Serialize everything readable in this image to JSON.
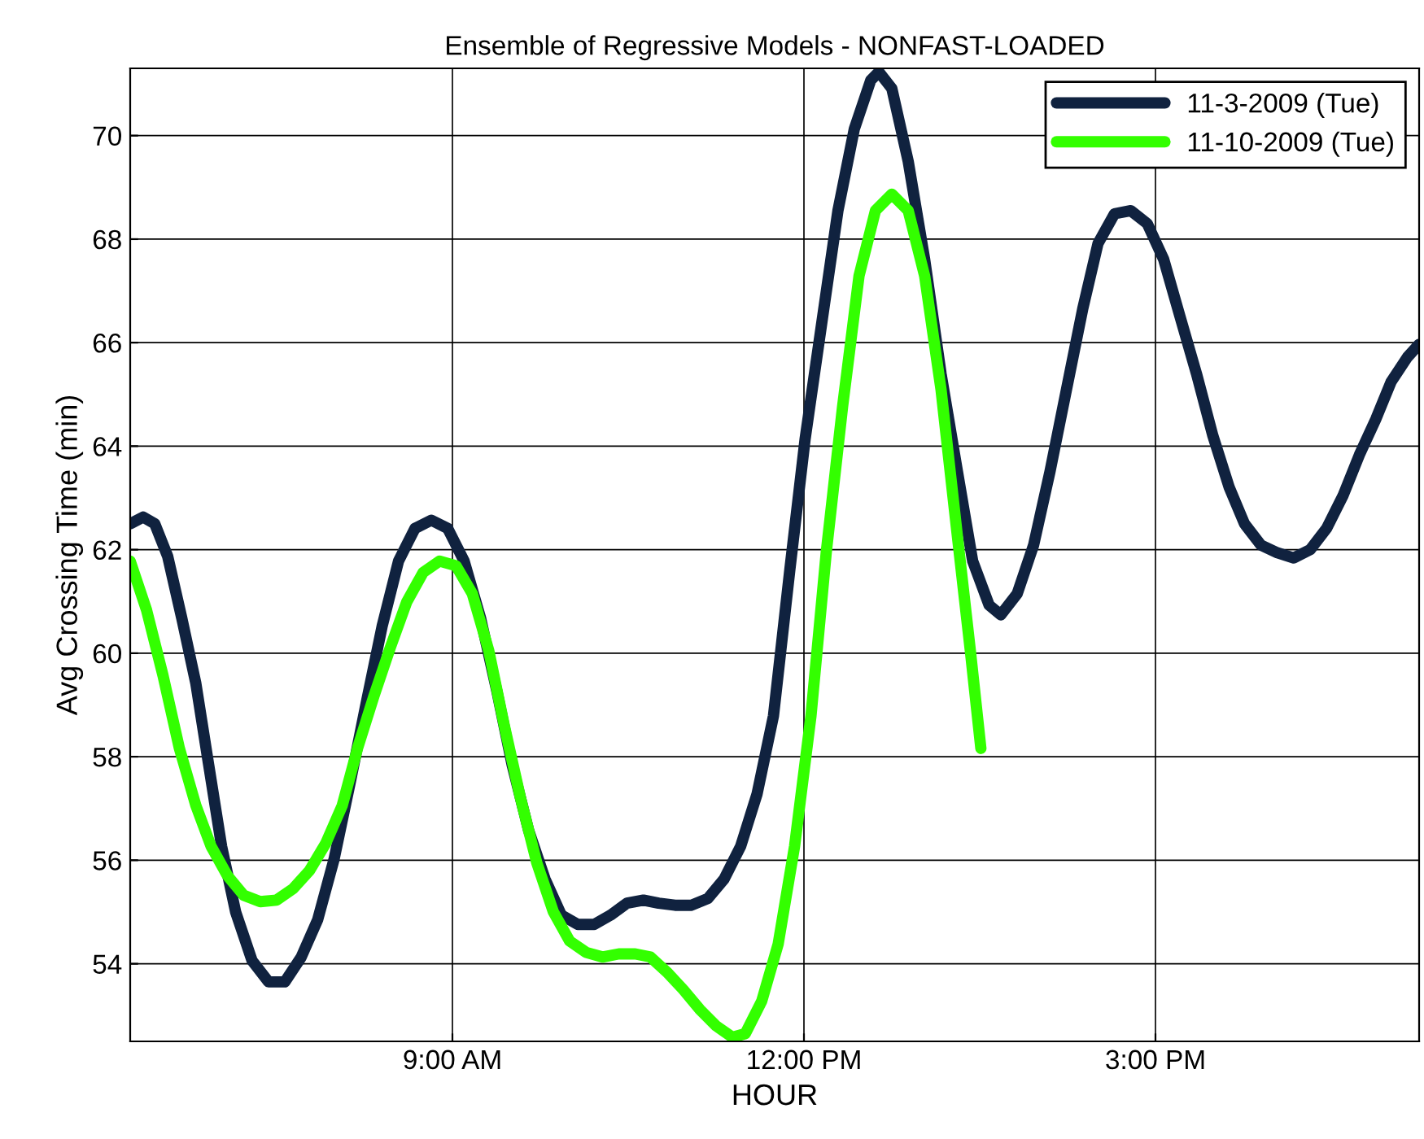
{
  "chart_data": {
    "type": "line",
    "title": "Ensemble of Regressive Models - NONFAST-LOADED",
    "xlabel": "HOUR",
    "ylabel": "Avg Crossing Time (min)",
    "xlim": [
      6.25,
      17.25
    ],
    "ylim": [
      52.5,
      71.3
    ],
    "xticks": [
      {
        "value": 9,
        "label": "9:00 AM"
      },
      {
        "value": 12,
        "label": "12:00 PM"
      },
      {
        "value": 15,
        "label": "3:00 PM"
      }
    ],
    "yticks": [
      54,
      56,
      58,
      60,
      62,
      64,
      66,
      68,
      70
    ],
    "grid": true,
    "legend": "top right",
    "series": [
      {
        "name": "11-3-2009 (Tue)",
        "color": "#10223f",
        "x": [
          6.25,
          6.36,
          6.46,
          6.57,
          6.69,
          6.81,
          6.92,
          7.03,
          7.15,
          7.29,
          7.43,
          7.57,
          7.71,
          7.85,
          7.99,
          8.13,
          8.27,
          8.4,
          8.54,
          8.68,
          8.82,
          8.96,
          9.1,
          9.24,
          9.38,
          9.51,
          9.65,
          9.79,
          9.93,
          10.07,
          10.21,
          10.35,
          10.49,
          10.63,
          10.76,
          10.9,
          11.04,
          11.18,
          11.32,
          11.46,
          11.6,
          11.74,
          11.88,
          12.01,
          12.15,
          12.29,
          12.43,
          12.57,
          12.64,
          12.75,
          12.89,
          13.03,
          13.17,
          13.31,
          13.44,
          13.58,
          13.68,
          13.82,
          13.96,
          14.1,
          14.24,
          14.38,
          14.51,
          14.65,
          14.79,
          14.93,
          15.07,
          15.21,
          15.35,
          15.49,
          15.63,
          15.76,
          15.9,
          16.04,
          16.18,
          16.32,
          16.46,
          16.6,
          16.74,
          16.88,
          17.01,
          17.15,
          17.25
        ],
        "values": [
          62.5,
          62.63,
          62.5,
          61.87,
          60.68,
          59.42,
          57.84,
          56.27,
          55.0,
          54.06,
          53.65,
          53.65,
          54.13,
          54.85,
          56.02,
          57.53,
          59.1,
          60.52,
          61.78,
          62.41,
          62.57,
          62.41,
          61.78,
          60.68,
          59.26,
          57.84,
          56.58,
          55.64,
          54.94,
          54.76,
          54.76,
          54.94,
          55.17,
          55.23,
          55.17,
          55.13,
          55.13,
          55.26,
          55.64,
          56.27,
          57.28,
          58.79,
          61.62,
          64.14,
          66.35,
          68.55,
          70.13,
          71.07,
          71.23,
          70.91,
          69.5,
          67.61,
          65.4,
          63.51,
          61.78,
          60.93,
          60.74,
          61.15,
          62.09,
          63.51,
          65.09,
          66.66,
          67.92,
          68.49,
          68.55,
          68.3,
          67.61,
          66.5,
          65.4,
          64.2,
          63.2,
          62.5,
          62.09,
          61.94,
          61.84,
          62.0,
          62.41,
          63.04,
          63.83,
          64.52,
          65.24,
          65.72,
          65.97
        ]
      },
      {
        "name": "11-10-2009 (Tue)",
        "color": "#33ff00",
        "x": [
          6.25,
          6.39,
          6.53,
          6.67,
          6.81,
          6.94,
          7.08,
          7.22,
          7.36,
          7.5,
          7.64,
          7.78,
          7.92,
          8.06,
          8.19,
          8.33,
          8.47,
          8.61,
          8.75,
          8.89,
          9.03,
          9.17,
          9.31,
          9.44,
          9.58,
          9.72,
          9.86,
          10.0,
          10.14,
          10.28,
          10.42,
          10.56,
          10.69,
          10.83,
          10.97,
          11.11,
          11.25,
          11.39,
          11.5,
          11.64,
          11.78,
          11.92,
          12.06,
          12.19,
          12.33,
          12.47,
          12.61,
          12.75,
          12.89,
          13.03,
          13.17,
          13.31,
          13.42,
          13.51
        ],
        "values": [
          61.78,
          60.83,
          59.57,
          58.16,
          57.06,
          56.27,
          55.7,
          55.32,
          55.2,
          55.23,
          55.45,
          55.8,
          56.33,
          57.06,
          58.16,
          59.17,
          60.11,
          60.99,
          61.56,
          61.78,
          61.69,
          61.15,
          60.05,
          58.63,
          57.21,
          55.95,
          55.01,
          54.44,
          54.22,
          54.13,
          54.19,
          54.19,
          54.13,
          53.84,
          53.5,
          53.12,
          52.8,
          52.58,
          52.65,
          53.28,
          54.38,
          56.27,
          58.79,
          61.94,
          64.77,
          67.29,
          68.55,
          68.87,
          68.55,
          67.29,
          65.09,
          62.25,
          60.05,
          58.16
        ]
      }
    ]
  }
}
